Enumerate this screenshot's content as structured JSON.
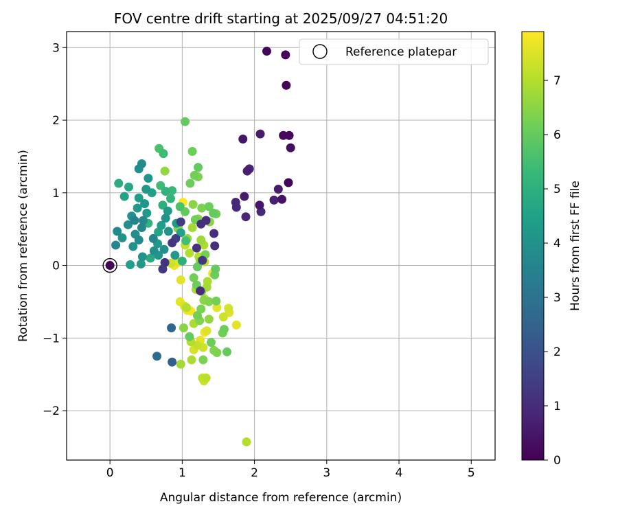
{
  "chart_data": {
    "type": "scatter",
    "title": "FOV centre drift starting at 2025/09/27 04:51:20",
    "xlabel": "Angular distance from reference (arcmin)",
    "ylabel": "Rotation from reference (arcmin)",
    "xlim": [
      -0.6,
      5.33
    ],
    "ylim": [
      -2.68,
      3.22
    ],
    "xticks": [
      0,
      1,
      2,
      3,
      4,
      5
    ],
    "yticks": [
      -2,
      -1,
      0,
      1,
      2,
      3
    ],
    "xtick_labels": [
      "0",
      "1",
      "2",
      "3",
      "4",
      "5"
    ],
    "ytick_labels": [
      "−2",
      "−1",
      "0",
      "1",
      "2",
      "3"
    ],
    "grid": true,
    "legend": {
      "position": "top-right",
      "entries": [
        "Reference platepar"
      ]
    },
    "reference_point": {
      "x": 0,
      "y": 0,
      "label": "Reference platepar"
    },
    "colorbar": {
      "label": "Hours from first FF file",
      "min": 0,
      "max": 7.9,
      "ticks": [
        0,
        1,
        2,
        3,
        4,
        5,
        6,
        7
      ],
      "tick_labels": [
        "0",
        "1",
        "2",
        "3",
        "4",
        "5",
        "6",
        "7"
      ],
      "colormap": "viridis",
      "stops": [
        "#440154",
        "#482878",
        "#3e4989",
        "#31688e",
        "#26828e",
        "#1f9e89",
        "#35b779",
        "#6ece58",
        "#b5de2b",
        "#fde725"
      ]
    },
    "series": [
      {
        "name": "Hours from first FF file",
        "points": [
          {
            "x": 2.44,
            "y": 2.48,
            "h": 0.1
          },
          {
            "x": 2.17,
            "y": 2.95,
            "h": 0.1
          },
          {
            "x": 2.43,
            "y": 2.9,
            "h": 0.1
          },
          {
            "x": 2.4,
            "y": 1.79,
            "h": 0.2
          },
          {
            "x": 2.48,
            "y": 1.79,
            "h": 0.2
          },
          {
            "x": 2.5,
            "y": 1.62,
            "h": 0.3
          },
          {
            "x": 1.84,
            "y": 1.74,
            "h": 0.5
          },
          {
            "x": 2.08,
            "y": 1.81,
            "h": 0.6
          },
          {
            "x": 1.9,
            "y": 1.3,
            "h": 0.7
          },
          {
            "x": 1.93,
            "y": 1.33,
            "h": 0.8
          },
          {
            "x": 2.47,
            "y": 1.14,
            "h": 0.1
          },
          {
            "x": 2.33,
            "y": 1.05,
            "h": 0.6
          },
          {
            "x": 1.86,
            "y": 0.95,
            "h": 0.6
          },
          {
            "x": 2.27,
            "y": 0.9,
            "h": 0.7
          },
          {
            "x": 2.38,
            "y": 0.91,
            "h": 0.4
          },
          {
            "x": 1.74,
            "y": 0.87,
            "h": 0.9
          },
          {
            "x": 1.75,
            "y": 0.8,
            "h": 0.9
          },
          {
            "x": 2.07,
            "y": 0.83,
            "h": 0.5
          },
          {
            "x": 2.09,
            "y": 0.74,
            "h": 0.9
          },
          {
            "x": 1.88,
            "y": 0.67,
            "h": 0.8
          },
          {
            "x": 1.44,
            "y": 0.44,
            "h": 1.0
          },
          {
            "x": 1.45,
            "y": 0.27,
            "h": 1.1
          },
          {
            "x": 1.33,
            "y": 0.62,
            "h": 1.0
          },
          {
            "x": 1.26,
            "y": 0.57,
            "h": 1.1
          },
          {
            "x": 1.2,
            "y": 0.24,
            "h": 1.2
          },
          {
            "x": 1.28,
            "y": 0.07,
            "h": 1.3
          },
          {
            "x": 0.98,
            "y": 0.6,
            "h": 1.4
          },
          {
            "x": 0.86,
            "y": 0.31,
            "h": 1.3
          },
          {
            "x": 0.91,
            "y": 0.37,
            "h": 1.5
          },
          {
            "x": 0.76,
            "y": 0.04,
            "h": 1.2
          },
          {
            "x": 0.73,
            "y": -0.05,
            "h": 1.3
          },
          {
            "x": 1.25,
            "y": -0.35,
            "h": 1.0
          },
          {
            "x": 0.0,
            "y": 0.0,
            "h": 0.1
          },
          {
            "x": 0.85,
            "y": -0.86,
            "h": 2.6
          },
          {
            "x": 0.65,
            "y": -1.25,
            "h": 2.8
          },
          {
            "x": 0.86,
            "y": -1.33,
            "h": 2.4
          },
          {
            "x": 0.1,
            "y": 0.47,
            "h": 3.8
          },
          {
            "x": 0.08,
            "y": 0.28,
            "h": 3.6
          },
          {
            "x": 0.17,
            "y": 0.38,
            "h": 4.0
          },
          {
            "x": 0.25,
            "y": 0.56,
            "h": 3.9
          },
          {
            "x": 0.3,
            "y": 0.68,
            "h": 4.0
          },
          {
            "x": 0.34,
            "y": 0.62,
            "h": 3.5
          },
          {
            "x": 0.38,
            "y": 0.79,
            "h": 4.2
          },
          {
            "x": 0.4,
            "y": 0.93,
            "h": 4.4
          },
          {
            "x": 0.44,
            "y": 1.4,
            "h": 3.8
          },
          {
            "x": 0.4,
            "y": 1.33,
            "h": 3.9
          },
          {
            "x": 0.53,
            "y": 1.2,
            "h": 4.1
          },
          {
            "x": 0.5,
            "y": 1.05,
            "h": 4.2
          },
          {
            "x": 0.58,
            "y": 1.0,
            "h": 4.5
          },
          {
            "x": 0.48,
            "y": 0.85,
            "h": 4.1
          },
          {
            "x": 0.51,
            "y": 0.72,
            "h": 4.3
          },
          {
            "x": 0.46,
            "y": 0.62,
            "h": 3.7
          },
          {
            "x": 0.44,
            "y": 0.52,
            "h": 3.6
          },
          {
            "x": 0.35,
            "y": 0.43,
            "h": 3.9
          },
          {
            "x": 0.4,
            "y": 0.35,
            "h": 3.8
          },
          {
            "x": 0.32,
            "y": 0.26,
            "h": 4.0
          },
          {
            "x": 0.45,
            "y": 0.12,
            "h": 4.0
          },
          {
            "x": 0.43,
            "y": 0.02,
            "h": 4.2
          },
          {
            "x": 0.28,
            "y": 0.01,
            "h": 4.4
          },
          {
            "x": 0.2,
            "y": 0.95,
            "h": 4.6
          },
          {
            "x": 0.26,
            "y": 1.08,
            "h": 4.7
          },
          {
            "x": 0.12,
            "y": 1.13,
            "h": 4.9
          },
          {
            "x": 0.56,
            "y": 0.1,
            "h": 4.8
          },
          {
            "x": 0.61,
            "y": 0.2,
            "h": 3.9
          },
          {
            "x": 0.66,
            "y": 0.3,
            "h": 4.2
          },
          {
            "x": 0.67,
            "y": 0.46,
            "h": 4.6
          },
          {
            "x": 0.6,
            "y": 0.37,
            "h": 3.6
          },
          {
            "x": 0.71,
            "y": 0.55,
            "h": 4.4
          },
          {
            "x": 0.77,
            "y": 0.65,
            "h": 4.0
          },
          {
            "x": 0.8,
            "y": 0.75,
            "h": 4.3
          },
          {
            "x": 0.73,
            "y": 0.83,
            "h": 5.0
          },
          {
            "x": 0.84,
            "y": 0.92,
            "h": 5.2
          },
          {
            "x": 0.86,
            "y": 1.03,
            "h": 5.3
          },
          {
            "x": 0.77,
            "y": 1.02,
            "h": 5.1
          },
          {
            "x": 0.7,
            "y": 1.1,
            "h": 5.4
          },
          {
            "x": 0.68,
            "y": 1.61,
            "h": 5.6
          },
          {
            "x": 0.74,
            "y": 1.54,
            "h": 5.4
          },
          {
            "x": 0.67,
            "y": 0.14,
            "h": 4.1
          },
          {
            "x": 0.75,
            "y": 0.22,
            "h": 3.9
          },
          {
            "x": 0.9,
            "y": 0.14,
            "h": 4.2
          },
          {
            "x": 0.53,
            "y": 0.58,
            "h": 5.1
          },
          {
            "x": 0.81,
            "y": 0.47,
            "h": 4.0
          },
          {
            "x": 0.92,
            "y": 0.58,
            "h": 4.3
          },
          {
            "x": 0.98,
            "y": 0.45,
            "h": 4.5
          },
          {
            "x": 1.0,
            "y": 0.06,
            "h": 5.0
          },
          {
            "x": 1.05,
            "y": 0.34,
            "h": 5.5
          },
          {
            "x": 0.97,
            "y": 0.81,
            "h": 5.6
          },
          {
            "x": 1.04,
            "y": 1.98,
            "h": 6.0
          },
          {
            "x": 1.14,
            "y": 1.57,
            "h": 6.1
          },
          {
            "x": 1.22,
            "y": 1.35,
            "h": 6.0
          },
          {
            "x": 1.17,
            "y": 1.24,
            "h": 6.2
          },
          {
            "x": 1.22,
            "y": 1.22,
            "h": 6.3
          },
          {
            "x": 1.11,
            "y": 1.13,
            "h": 6.1
          },
          {
            "x": 0.76,
            "y": 1.3,
            "h": 6.6
          },
          {
            "x": 1.04,
            "y": 0.74,
            "h": 6.0
          },
          {
            "x": 1.15,
            "y": 0.84,
            "h": 6.5
          },
          {
            "x": 1.18,
            "y": 0.63,
            "h": 6.2
          },
          {
            "x": 1.22,
            "y": 0.64,
            "h": 6.4
          },
          {
            "x": 1.27,
            "y": 0.79,
            "h": 6.3
          },
          {
            "x": 1.37,
            "y": 0.81,
            "h": 6.1
          },
          {
            "x": 1.43,
            "y": 0.72,
            "h": 6.0
          },
          {
            "x": 1.47,
            "y": 0.71,
            "h": 6.2
          },
          {
            "x": 1.38,
            "y": 0.6,
            "h": 6.5
          },
          {
            "x": 1.14,
            "y": 0.52,
            "h": 6.8
          },
          {
            "x": 0.94,
            "y": 0.51,
            "h": 6.4
          },
          {
            "x": 1.07,
            "y": 0.37,
            "h": 6.6
          },
          {
            "x": 1.26,
            "y": 0.35,
            "h": 6.7
          },
          {
            "x": 1.3,
            "y": 0.28,
            "h": 6.9
          },
          {
            "x": 1.32,
            "y": 0.15,
            "h": 6.2
          },
          {
            "x": 1.25,
            "y": 0.06,
            "h": 6.4
          },
          {
            "x": 1.21,
            "y": -0.02,
            "h": 6.0
          },
          {
            "x": 1.16,
            "y": -0.17,
            "h": 6.2
          },
          {
            "x": 1.2,
            "y": -0.27,
            "h": 6.1
          },
          {
            "x": 1.27,
            "y": -0.36,
            "h": 6.3
          },
          {
            "x": 1.3,
            "y": -0.48,
            "h": 6.5
          },
          {
            "x": 1.37,
            "y": -0.5,
            "h": 6.4
          },
          {
            "x": 1.47,
            "y": -0.49,
            "h": 6.2
          },
          {
            "x": 1.46,
            "y": -0.05,
            "h": 6.0
          },
          {
            "x": 1.45,
            "y": -0.13,
            "h": 6.1
          },
          {
            "x": 1.26,
            "y": -0.6,
            "h": 6.3
          },
          {
            "x": 1.21,
            "y": -0.69,
            "h": 6.2
          },
          {
            "x": 1.24,
            "y": -0.76,
            "h": 6.4
          },
          {
            "x": 1.37,
            "y": -0.74,
            "h": 6.6
          },
          {
            "x": 1.02,
            "y": -0.86,
            "h": 6.5
          },
          {
            "x": 1.1,
            "y": -0.98,
            "h": 6.0
          },
          {
            "x": 1.4,
            "y": -1.06,
            "h": 6.1
          },
          {
            "x": 1.44,
            "y": -1.17,
            "h": 6.4
          },
          {
            "x": 1.48,
            "y": -1.2,
            "h": 6.3
          },
          {
            "x": 1.62,
            "y": -1.19,
            "h": 6.0
          },
          {
            "x": 1.58,
            "y": -0.88,
            "h": 6.1
          },
          {
            "x": 1.56,
            "y": -0.93,
            "h": 6.2
          },
          {
            "x": 0.98,
            "y": -1.36,
            "h": 6.8
          },
          {
            "x": 1.13,
            "y": -1.3,
            "h": 6.9
          },
          {
            "x": 1.29,
            "y": -1.3,
            "h": 6.3
          },
          {
            "x": 1.28,
            "y": -1.55,
            "h": 7.2
          },
          {
            "x": 1.33,
            "y": -1.55,
            "h": 7.1
          },
          {
            "x": 1.3,
            "y": -1.59,
            "h": 7.3
          },
          {
            "x": 1.89,
            "y": -2.43,
            "h": 7.0
          },
          {
            "x": 1.12,
            "y": -1.05,
            "h": 7.0
          },
          {
            "x": 1.16,
            "y": -1.16,
            "h": 7.4
          },
          {
            "x": 1.21,
            "y": -1.1,
            "h": 7.2
          },
          {
            "x": 1.25,
            "y": -1.03,
            "h": 7.6
          },
          {
            "x": 1.29,
            "y": -1.13,
            "h": 7.3
          },
          {
            "x": 1.34,
            "y": -0.9,
            "h": 7.5
          },
          {
            "x": 1.07,
            "y": -0.62,
            "h": 7.7
          },
          {
            "x": 1.12,
            "y": -0.63,
            "h": 7.8
          },
          {
            "x": 0.97,
            "y": -0.5,
            "h": 7.6
          },
          {
            "x": 1.03,
            "y": -0.56,
            "h": 7.4
          },
          {
            "x": 0.89,
            "y": 0.0,
            "h": 7.7
          },
          {
            "x": 0.94,
            "y": 0.04,
            "h": 7.5
          },
          {
            "x": 0.99,
            "y": 0.06,
            "h": 7.8
          },
          {
            "x": 0.84,
            "y": 0.03,
            "h": 7.3
          },
          {
            "x": 0.98,
            "y": -0.2,
            "h": 7.6
          },
          {
            "x": 1.01,
            "y": 0.87,
            "h": 7.9
          },
          {
            "x": 1.42,
            "y": -0.11,
            "h": 7.7
          },
          {
            "x": 1.48,
            "y": -0.58,
            "h": 7.6
          },
          {
            "x": 1.64,
            "y": -0.59,
            "h": 7.4
          },
          {
            "x": 1.65,
            "y": -0.65,
            "h": 7.5
          },
          {
            "x": 1.57,
            "y": -0.71,
            "h": 7.3
          },
          {
            "x": 1.75,
            "y": -0.82,
            "h": 7.6
          },
          {
            "x": 1.31,
            "y": -0.92,
            "h": 7.7
          },
          {
            "x": 1.1,
            "y": 0.17,
            "h": 7.0
          },
          {
            "x": 1.04,
            "y": 0.28,
            "h": 7.2
          },
          {
            "x": 1.31,
            "y": 0.05,
            "h": 7.1
          },
          {
            "x": 1.23,
            "y": 0.12,
            "h": 7.0
          },
          {
            "x": 1.35,
            "y": -0.22,
            "h": 6.9
          },
          {
            "x": 1.19,
            "y": -0.33,
            "h": 6.8
          },
          {
            "x": 1.06,
            "y": -0.58,
            "h": 7.0
          },
          {
            "x": 1.16,
            "y": -0.8,
            "h": 6.9
          },
          {
            "x": 1.34,
            "y": -0.3,
            "h": 6.8
          },
          {
            "x": 1.31,
            "y": -0.46,
            "h": 6.9
          }
        ]
      }
    ]
  }
}
